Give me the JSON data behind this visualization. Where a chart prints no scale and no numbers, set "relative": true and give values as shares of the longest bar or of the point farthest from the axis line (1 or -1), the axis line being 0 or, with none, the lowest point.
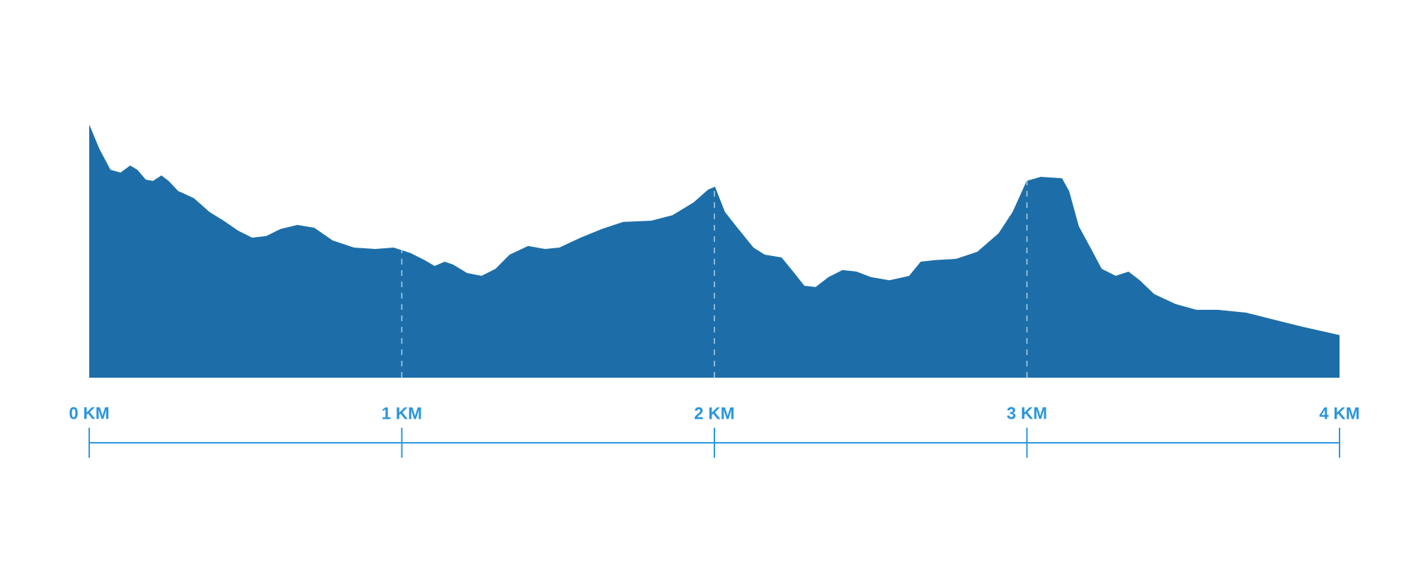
{
  "chart_data": {
    "type": "area",
    "relative": true,
    "xlim": [
      0,
      4
    ],
    "xticks": [
      {
        "value": 0,
        "label": "0 KM"
      },
      {
        "value": 1,
        "label": "1 KM"
      },
      {
        "value": 2,
        "label": "2 KM"
      },
      {
        "value": 3,
        "label": "3 KM"
      },
      {
        "value": 4,
        "label": "4 KM"
      }
    ],
    "x": [
      0,
      0.032,
      0.068,
      0.1,
      0.131,
      0.154,
      0.181,
      0.204,
      0.231,
      0.254,
      0.285,
      0.335,
      0.385,
      0.43,
      0.476,
      0.521,
      0.566,
      0.612,
      0.666,
      0.72,
      0.779,
      0.847,
      0.915,
      0.974,
      1.028,
      1.073,
      1.105,
      1.137,
      1.164,
      1.209,
      1.255,
      1.3,
      1.345,
      1.404,
      1.459,
      1.504,
      1.572,
      1.64,
      1.708,
      1.798,
      1.866,
      1.934,
      1.98,
      2.002,
      2.034,
      2.07,
      2.125,
      2.161,
      2.215,
      2.252,
      2.288,
      2.324,
      2.365,
      2.41,
      2.455,
      2.501,
      2.56,
      2.623,
      2.66,
      2.705,
      2.773,
      2.841,
      2.909,
      2.954,
      2.999,
      3.044,
      3.112,
      3.135,
      3.166,
      3.203,
      3.239,
      3.284,
      3.325,
      3.361,
      3.407,
      3.475,
      3.542,
      3.611,
      3.701,
      3.791,
      3.882,
      4.0
    ],
    "values": [
      1.0,
      0.905,
      0.821,
      0.81,
      0.838,
      0.821,
      0.782,
      0.777,
      0.799,
      0.777,
      0.737,
      0.709,
      0.654,
      0.62,
      0.581,
      0.553,
      0.559,
      0.587,
      0.603,
      0.592,
      0.542,
      0.514,
      0.508,
      0.514,
      0.492,
      0.464,
      0.441,
      0.458,
      0.447,
      0.413,
      0.402,
      0.43,
      0.486,
      0.52,
      0.508,
      0.514,
      0.553,
      0.587,
      0.615,
      0.62,
      0.642,
      0.693,
      0.743,
      0.754,
      0.654,
      0.598,
      0.514,
      0.486,
      0.475,
      0.419,
      0.363,
      0.358,
      0.397,
      0.425,
      0.419,
      0.397,
      0.385,
      0.402,
      0.458,
      0.464,
      0.469,
      0.497,
      0.57,
      0.654,
      0.777,
      0.793,
      0.788,
      0.737,
      0.598,
      0.514,
      0.43,
      0.402,
      0.419,
      0.385,
      0.33,
      0.291,
      0.268,
      0.268,
      0.257,
      0.229,
      0.201,
      0.168
    ],
    "color": "#1d6ea8",
    "ref_lines": [
      {
        "axis": "x",
        "value": 1,
        "color": "#a8cde8",
        "line_style": "dashed"
      },
      {
        "axis": "x",
        "value": 2,
        "color": "#a8cde8",
        "line_style": "dashed"
      },
      {
        "axis": "x",
        "value": 3,
        "color": "#a8cde8",
        "line_style": "dashed"
      }
    ]
  }
}
